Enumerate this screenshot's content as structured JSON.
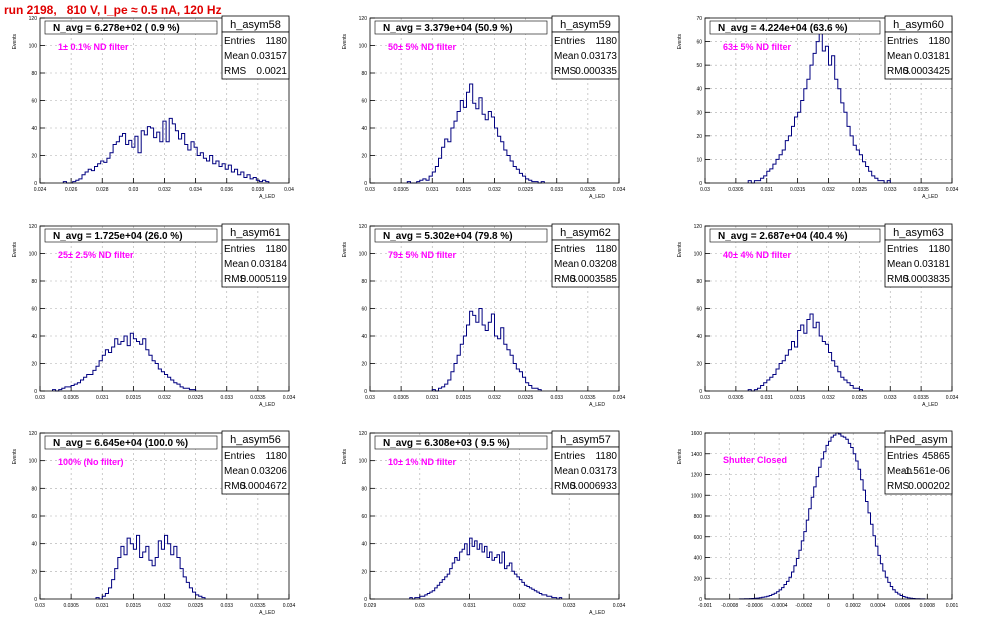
{
  "run_title": "run 2198,   810 V, I_pe ≈ 0.5 nA, 120 Hz",
  "colors": {
    "title": "#e00000",
    "hist": "#000080",
    "note": "#ff00ff",
    "grid": "#aaaaaa"
  },
  "chart_data": [
    {
      "type": "histogram",
      "name": "h_asym58",
      "stat_labels": [
        "Entries",
        "Mean",
        "RMS"
      ],
      "stats": [
        "1180",
        "0.03157",
        "0.0021"
      ],
      "annot": "N_avg = 6.278e+02 ( 0.9 %)",
      "note": "1± 0.1% ND filter",
      "ylabel": "Events",
      "xlabel": "A_LED",
      "xlim": [
        0.024,
        0.04
      ],
      "ylim": [
        0,
        120
      ],
      "xticks": [
        "0.024",
        "0.026",
        "0.028",
        "0.03",
        "0.032",
        "0.034",
        "0.036",
        "0.038",
        "0.04"
      ],
      "yticks": [
        "0",
        "20",
        "40",
        "60",
        "80",
        "100",
        "120"
      ],
      "x_start": 0.0255,
      "bin_width": 0.0002,
      "values": [
        1,
        0,
        0,
        1,
        2,
        3,
        6,
        8,
        10,
        9,
        12,
        14,
        16,
        15,
        18,
        22,
        28,
        30,
        34,
        36,
        28,
        31,
        26,
        34,
        22,
        38,
        35,
        41,
        40,
        33,
        37,
        30,
        45,
        30,
        47,
        43,
        38,
        32,
        36,
        28,
        24,
        30,
        26,
        20,
        22,
        18,
        16,
        20,
        14,
        16,
        12,
        14,
        10,
        13,
        8,
        10,
        6,
        8,
        4,
        6,
        3,
        4,
        2,
        1,
        2,
        1
      ]
    },
    {
      "type": "histogram",
      "name": "h_asym59",
      "stat_labels": [
        "Entries",
        "Mean",
        "RMS"
      ],
      "stats": [
        "1180",
        "0.03173",
        "0.000335"
      ],
      "annot": "N_avg = 3.379e+04 (50.9 %)",
      "note": "50± 5% ND filter",
      "ylabel": "Events",
      "xlabel": "A_LED",
      "xlim": [
        0.03,
        0.034
      ],
      "ylim": [
        0,
        120
      ],
      "xticks": [
        "0.03",
        "0.0305",
        "0.031",
        "0.0315",
        "0.032",
        "0.0325",
        "0.033",
        "0.0335",
        "0.034"
      ],
      "yticks": [
        "0",
        "20",
        "40",
        "60",
        "80",
        "100",
        "120"
      ],
      "x_start": 0.0306,
      "bin_width": 5e-05,
      "values": [
        1,
        0,
        0,
        1,
        2,
        3,
        2,
        5,
        8,
        12,
        18,
        26,
        32,
        30,
        40,
        45,
        52,
        60,
        55,
        66,
        72,
        58,
        54,
        62,
        50,
        46,
        52,
        48,
        40,
        34,
        30,
        24,
        20,
        16,
        12,
        10,
        7,
        5,
        3,
        2,
        1,
        1,
        0,
        1
      ]
    },
    {
      "type": "histogram",
      "name": "h_asym60",
      "stat_labels": [
        "Entries",
        "Mean",
        "RMS"
      ],
      "stats": [
        "1180",
        "0.03181",
        "0.0003425"
      ],
      "annot": "N_avg = 4.224e+04 (63.6 %)",
      "note": "63± 5% ND filter",
      "ylabel": "Events",
      "xlabel": "A_LED",
      "xlim": [
        0.03,
        0.034
      ],
      "ylim": [
        0,
        70
      ],
      "xticks": [
        "0.03",
        "0.0305",
        "0.031",
        "0.0315",
        "0.032",
        "0.0325",
        "0.033",
        "0.0335",
        "0.034"
      ],
      "yticks": [
        "0",
        "10",
        "20",
        "30",
        "40",
        "50",
        "60",
        "70"
      ],
      "x_start": 0.0307,
      "bin_width": 5e-05,
      "values": [
        1,
        0,
        1,
        1,
        2,
        3,
        5,
        6,
        8,
        10,
        12,
        14,
        18,
        20,
        24,
        28,
        30,
        35,
        40,
        44,
        50,
        55,
        60,
        64,
        56,
        58,
        50,
        54,
        44,
        40,
        34,
        30,
        24,
        20,
        16,
        14,
        12,
        9,
        7,
        5,
        3,
        2,
        1,
        1,
        0,
        1
      ]
    },
    {
      "type": "histogram",
      "name": "h_asym61",
      "stat_labels": [
        "Entries",
        "Mean",
        "RMS"
      ],
      "stats": [
        "1180",
        "0.03184",
        "0.0005119"
      ],
      "annot": "N_avg = 1.725e+04 (26.0 %)",
      "note": "25± 2.5% ND filter",
      "ylabel": "Events",
      "xlabel": "A_LED",
      "xlim": [
        0.03,
        0.034
      ],
      "ylim": [
        0,
        120
      ],
      "xticks": [
        "0.03",
        "0.0305",
        "0.031",
        "0.0315",
        "0.032",
        "0.0325",
        "0.033",
        "0.0335",
        "0.034"
      ],
      "yticks": [
        "0",
        "20",
        "40",
        "60",
        "80",
        "100",
        "120"
      ],
      "x_start": 0.0302,
      "bin_width": 5e-05,
      "values": [
        1,
        0,
        1,
        2,
        3,
        3,
        4,
        5,
        6,
        8,
        10,
        12,
        12,
        15,
        18,
        22,
        26,
        30,
        28,
        32,
        38,
        34,
        36,
        40,
        33,
        42,
        38,
        36,
        34,
        38,
        30,
        26,
        22,
        20,
        16,
        14,
        12,
        10,
        8,
        6,
        5,
        3,
        2,
        2,
        1,
        1
      ]
    },
    {
      "type": "histogram",
      "name": "h_asym62",
      "stat_labels": [
        "Entries",
        "Mean",
        "RMS"
      ],
      "stats": [
        "1180",
        "0.03208",
        "0.0003585"
      ],
      "annot": "N_avg = 5.302e+04 (79.8 %)",
      "note": "79± 5% ND filter",
      "ylabel": "Events",
      "xlabel": "A_LED",
      "xlim": [
        0.03,
        0.034
      ],
      "ylim": [
        0,
        120
      ],
      "xticks": [
        "0.03",
        "0.0305",
        "0.031",
        "0.0315",
        "0.032",
        "0.0325",
        "0.033",
        "0.0335",
        "0.034"
      ],
      "yticks": [
        "0",
        "20",
        "40",
        "60",
        "80",
        "100",
        "120"
      ],
      "x_start": 0.031,
      "bin_width": 5e-05,
      "values": [
        1,
        0,
        2,
        3,
        5,
        8,
        14,
        20,
        26,
        34,
        40,
        48,
        58,
        55,
        50,
        60,
        48,
        44,
        50,
        56,
        40,
        38,
        46,
        34,
        30,
        26,
        20,
        16,
        14,
        10,
        6,
        4,
        2,
        2,
        1
      ]
    },
    {
      "type": "histogram",
      "name": "h_asym63",
      "stat_labels": [
        "Entries",
        "Mean",
        "RMS"
      ],
      "stats": [
        "1180",
        "0.03181",
        "0.0003835"
      ],
      "annot": "N_avg = 2.687e+04 (40.4 %)",
      "note": "40± 4% ND filter",
      "ylabel": "Events",
      "xlabel": "A_LED",
      "xlim": [
        0.03,
        0.034
      ],
      "ylim": [
        0,
        120
      ],
      "xticks": [
        "0.03",
        "0.0305",
        "0.031",
        "0.0315",
        "0.032",
        "0.0325",
        "0.033",
        "0.0335",
        "0.034"
      ],
      "yticks": [
        "0",
        "20",
        "40",
        "60",
        "80",
        "100",
        "120"
      ],
      "x_start": 0.0307,
      "bin_width": 5e-05,
      "values": [
        1,
        0,
        1,
        2,
        4,
        6,
        8,
        10,
        12,
        16,
        20,
        22,
        26,
        30,
        36,
        32,
        44,
        48,
        42,
        52,
        56,
        46,
        50,
        40,
        36,
        34,
        28,
        22,
        18,
        14,
        10,
        8,
        6,
        4,
        2,
        2,
        1
      ]
    },
    {
      "type": "histogram",
      "name": "h_asym56",
      "stat_labels": [
        "Entries",
        "Mean",
        "RMS"
      ],
      "stats": [
        "1180",
        "0.03206",
        "0.0004672"
      ],
      "annot": "N_avg = 6.645e+04 (100.0 %)",
      "note": "100% (No filter)",
      "ylabel": "Events",
      "xlabel": "A_LED",
      "xlim": [
        0.03,
        0.034
      ],
      "ylim": [
        0,
        120
      ],
      "xticks": [
        "0.03",
        "0.0305",
        "0.031",
        "0.0315",
        "0.032",
        "0.0325",
        "0.033",
        "0.0335",
        "0.034"
      ],
      "yticks": [
        "0",
        "20",
        "40",
        "60",
        "80",
        "100",
        "120"
      ],
      "x_start": 0.0309,
      "bin_width": 5e-05,
      "values": [
        1,
        0,
        2,
        4,
        8,
        14,
        22,
        30,
        38,
        32,
        44,
        40,
        36,
        46,
        30,
        34,
        38,
        28,
        24,
        30,
        42,
        36,
        46,
        40,
        32,
        38,
        30,
        22,
        16,
        12,
        8,
        5,
        3,
        2,
        1
      ]
    },
    {
      "type": "histogram",
      "name": "h_asym57",
      "stat_labels": [
        "Entries",
        "Mean",
        "RMS"
      ],
      "stats": [
        "1180",
        "0.03173",
        "0.0006933"
      ],
      "annot": "N_avg = 6.308e+03 ( 9.5 %)",
      "note": "10± 1% ND filter",
      "ylabel": "Events",
      "xlabel": "A_LED",
      "xlim": [
        0.029,
        0.034
      ],
      "ylim": [
        0,
        120
      ],
      "xticks": [
        "0.029",
        "0.03",
        "0.031",
        "0.032",
        "0.033",
        "0.034"
      ],
      "yticks": [
        "0",
        "20",
        "40",
        "60",
        "80",
        "100",
        "120"
      ],
      "x_start": 0.0298,
      "bin_width": 5e-05,
      "values": [
        1,
        0,
        1,
        1,
        2,
        2,
        3,
        4,
        5,
        6,
        8,
        10,
        12,
        14,
        16,
        18,
        22,
        26,
        30,
        28,
        34,
        36,
        40,
        32,
        44,
        38,
        42,
        36,
        40,
        34,
        38,
        30,
        34,
        28,
        30,
        32,
        26,
        34,
        22,
        24,
        26,
        20,
        18,
        16,
        14,
        12,
        10,
        9,
        8,
        7,
        6,
        5,
        4,
        3,
        3,
        2,
        2,
        1,
        1,
        0,
        1
      ]
    },
    {
      "type": "histogram",
      "name": "hPed_asym",
      "stat_labels": [
        "Entries",
        "Mean",
        "RMS"
      ],
      "stats": [
        "45865",
        "-1.561e-06",
        "0.000202"
      ],
      "annot": "",
      "note": "Shutter Closed",
      "ylabel": "Events",
      "xlabel": "",
      "xlim": [
        -0.001,
        0.001
      ],
      "ylim": [
        0,
        1600
      ],
      "xticks": [
        "-0.001",
        "-0.0008",
        "-0.0006",
        "-0.0004",
        "-0.0002",
        "0",
        "0.0002",
        "0.0004",
        "0.0006",
        "0.0008",
        "0.001"
      ],
      "yticks": [
        "0",
        "200",
        "400",
        "600",
        "800",
        "1000",
        "1200",
        "1400",
        "1600"
      ],
      "x_start": -0.00072,
      "bin_width": 2e-05,
      "values": [
        1,
        1,
        2,
        3,
        4,
        5,
        7,
        9,
        12,
        16,
        20,
        26,
        34,
        44,
        56,
        70,
        88,
        110,
        140,
        170,
        210,
        260,
        320,
        390,
        470,
        560,
        650,
        760,
        870,
        980,
        1080,
        1180,
        1270,
        1350,
        1420,
        1480,
        1520,
        1560,
        1580,
        1600,
        1590,
        1570,
        1560,
        1540,
        1500,
        1460,
        1400,
        1330,
        1250,
        1150,
        1050,
        940,
        830,
        720,
        610,
        510,
        420,
        340,
        270,
        210,
        160,
        120,
        90,
        66,
        48,
        34,
        24,
        16,
        11,
        7,
        5,
        3,
        2,
        1,
        1
      ]
    }
  ]
}
